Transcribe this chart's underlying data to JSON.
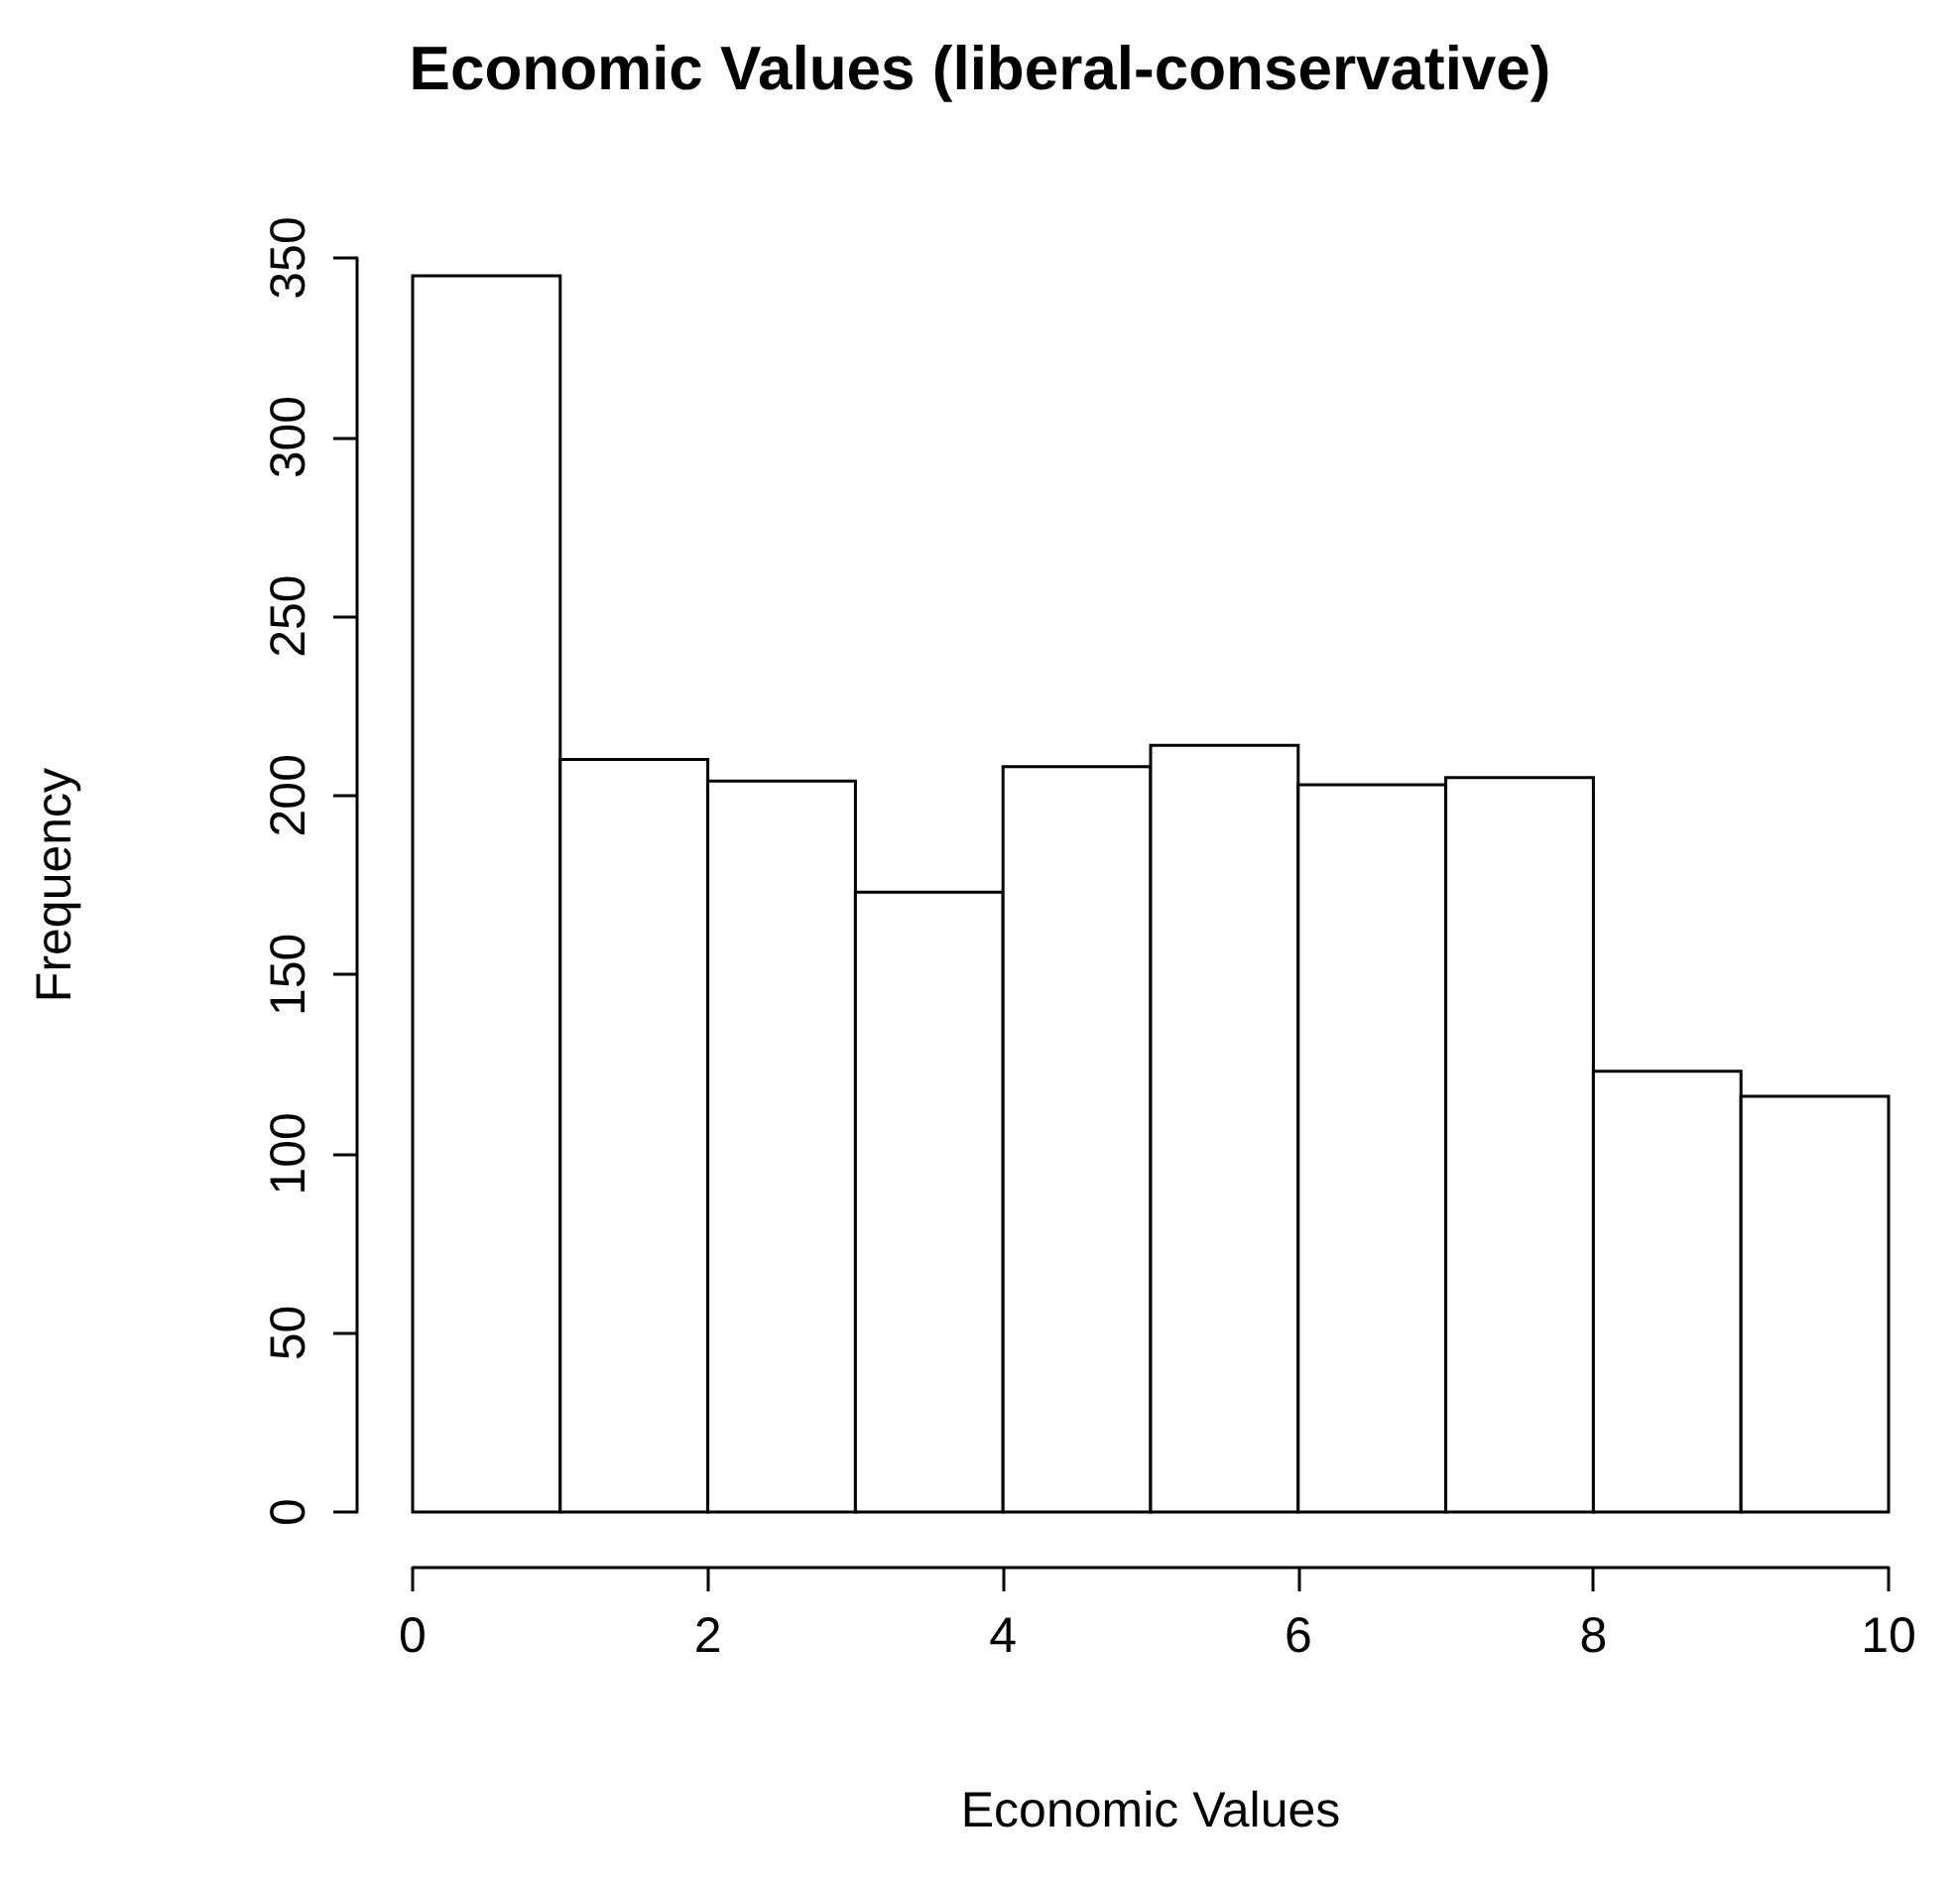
{
  "chart_data": {
    "type": "histogram",
    "title": "Economic Values (liberal-conservative)",
    "xlabel": "Economic Values",
    "ylabel": "Frequency",
    "bins": [
      0,
      1,
      2,
      3,
      4,
      5,
      6,
      7,
      8,
      9,
      10
    ],
    "values": [
      345,
      210,
      204,
      173,
      208,
      214,
      203,
      205,
      123,
      116
    ],
    "color": "#ffffff",
    "xlim": [
      0,
      10
    ],
    "xticks": [
      0,
      2,
      4,
      6,
      8,
      10
    ],
    "ylim": [
      0,
      350
    ],
    "yticks": [
      0,
      50,
      100,
      150,
      200,
      250,
      300,
      350
    ]
  }
}
